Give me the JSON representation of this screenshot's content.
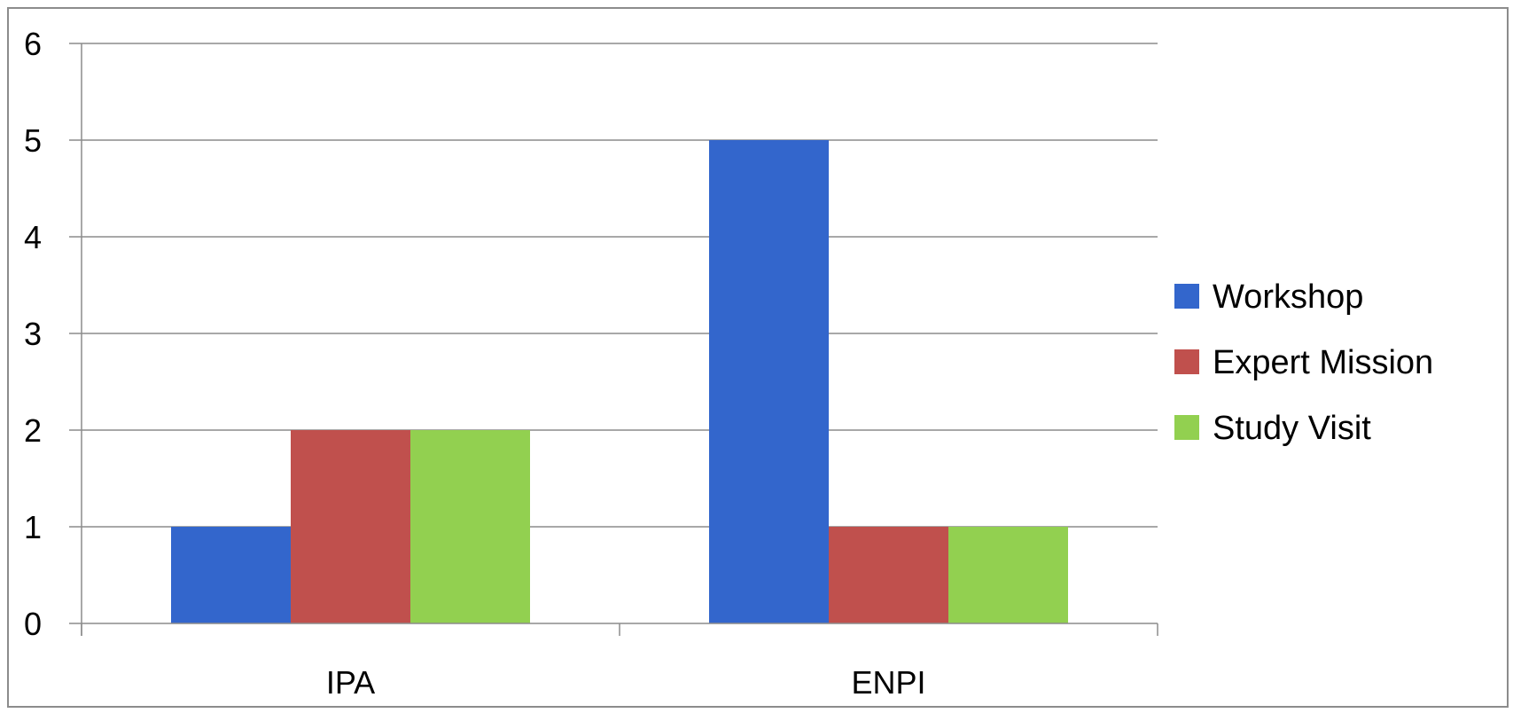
{
  "chart_data": {
    "type": "bar",
    "categories": [
      "IPA",
      "ENPI"
    ],
    "series": [
      {
        "name": "Workshop",
        "values": [
          1,
          5
        ],
        "color": "#3366cc"
      },
      {
        "name": "Expert Mission",
        "values": [
          2,
          1
        ],
        "color": "#c0504d"
      },
      {
        "name": "Study Visit",
        "values": [
          2,
          1
        ],
        "color": "#92d050"
      }
    ],
    "ylim": [
      0,
      6
    ],
    "yticks": [
      0,
      1,
      2,
      3,
      4,
      5,
      6
    ],
    "title": "",
    "xlabel": "",
    "ylabel": "",
    "grid": true,
    "legend_position": "right"
  }
}
